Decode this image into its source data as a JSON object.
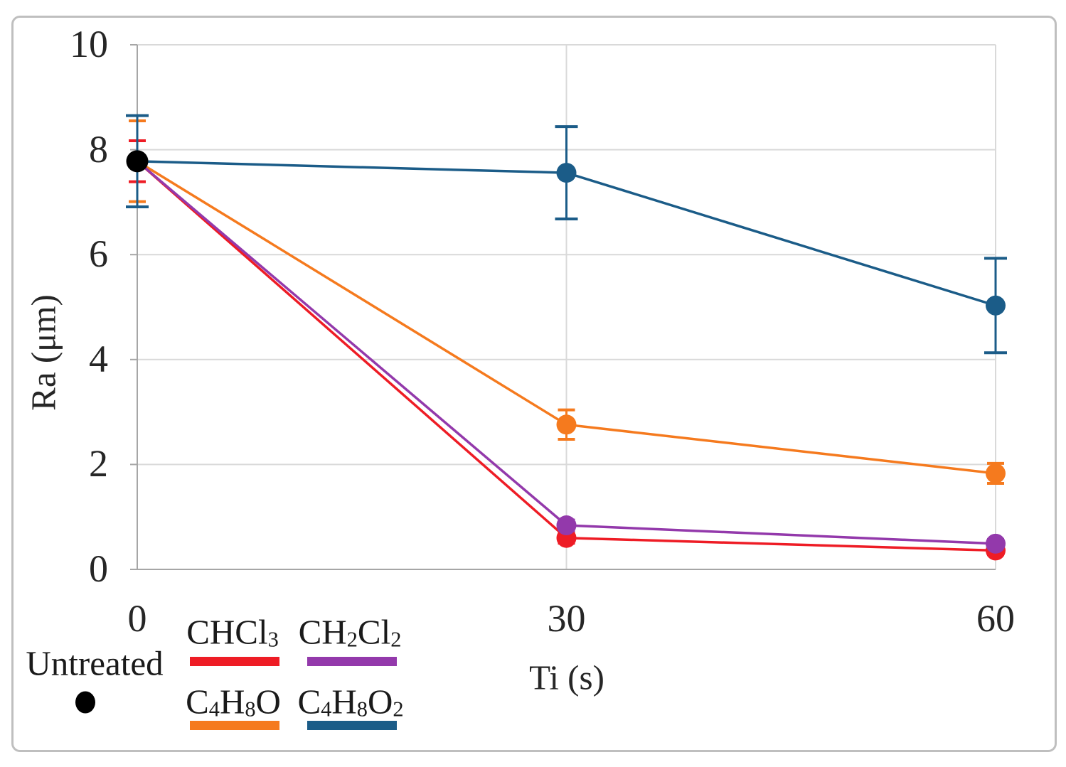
{
  "chart_data": {
    "type": "line",
    "title": "",
    "xlabel": "Ti (s)",
    "ylabel": "Ra (μm)",
    "x": [
      0,
      30,
      60
    ],
    "x_tick_labels": [
      "0",
      "30",
      "60"
    ],
    "y_tick_labels": [
      "10",
      "8",
      "6",
      "4",
      "2",
      "0"
    ],
    "ylim": [
      0,
      10
    ],
    "xlim": [
      0,
      60
    ],
    "grid": true,
    "legend_position": "bottom",
    "colors": {
      "grid": "#d9d9d9",
      "axis": "#a6a6a6",
      "border": "#bfbfbf"
    },
    "series": [
      {
        "name": "untreated",
        "label": "Untreated",
        "color": "#000000",
        "marker_only": true,
        "values": [
          7.78,
          null,
          null
        ],
        "errors": [
          0,
          0,
          0
        ]
      },
      {
        "name": "chcl3",
        "label": "CHCl3",
        "color": "#ee1c25",
        "values": [
          7.78,
          0.6,
          0.36
        ],
        "errors": [
          0.39,
          0.1,
          0.08
        ]
      },
      {
        "name": "ch2cl2",
        "label": "CH2Cl2",
        "color": "#9339ab",
        "values": [
          7.78,
          0.84,
          0.49
        ],
        "errors": [
          0,
          0.1,
          0.08
        ]
      },
      {
        "name": "c4h8o",
        "label": "C4H8O",
        "color": "#f57a1e",
        "values": [
          7.78,
          2.76,
          1.83
        ],
        "errors": [
          0.77,
          0.28,
          0.19
        ]
      },
      {
        "name": "c4h8o2",
        "label": "C4H8O2",
        "color": "#1b5c88",
        "values": [
          7.78,
          7.56,
          5.03
        ],
        "errors": [
          0.87,
          0.88,
          0.9
        ]
      }
    ]
  }
}
